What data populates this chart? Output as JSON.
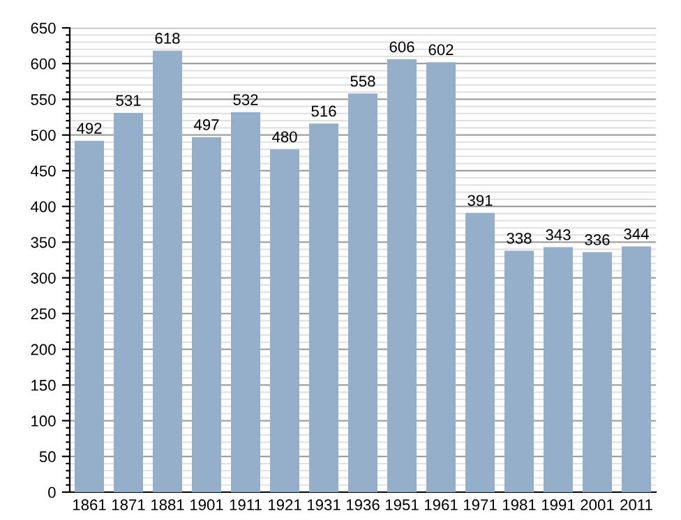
{
  "chart_data": {
    "type": "bar",
    "categories": [
      "1861",
      "1871",
      "1881",
      "1901",
      "1911",
      "1921",
      "1931",
      "1936",
      "1951",
      "1961",
      "1971",
      "1981",
      "1991",
      "2001",
      "2011"
    ],
    "values": [
      492,
      531,
      618,
      497,
      532,
      480,
      516,
      558,
      606,
      602,
      391,
      338,
      343,
      336,
      344
    ],
    "color": "#95afcb",
    "data_labels": true,
    "ylim": [
      0,
      650
    ],
    "yticks": [
      0,
      {
        "value": 10,
        "label": null
      },
      {
        "value": 20,
        "label": null
      },
      {
        "value": 30,
        "label": null
      },
      {
        "value": 40,
        "label": null
      },
      50,
      {
        "value": 60,
        "label": null
      },
      {
        "value": 70,
        "label": null
      },
      {
        "value": 80,
        "label": null
      },
      {
        "value": 90,
        "label": null
      },
      100,
      {
        "value": 110,
        "label": null
      },
      {
        "value": 120,
        "label": null
      },
      {
        "value": 130,
        "label": null
      },
      {
        "value": 140,
        "label": null
      },
      150,
      {
        "value": 160,
        "label": null
      },
      {
        "value": 170,
        "label": null
      },
      {
        "value": 180,
        "label": null
      },
      {
        "value": 190,
        "label": null
      },
      200,
      {
        "value": 210,
        "label": null
      },
      {
        "value": 220,
        "label": null
      },
      {
        "value": 230,
        "label": null
      },
      {
        "value": 240,
        "label": null
      },
      250,
      {
        "value": 260,
        "label": null
      },
      {
        "value": 270,
        "label": null
      },
      {
        "value": 280,
        "label": null
      },
      {
        "value": 290,
        "label": null
      },
      300,
      {
        "value": 310,
        "label": null
      },
      {
        "value": 320,
        "label": null
      },
      {
        "value": 330,
        "label": null
      },
      {
        "value": 340,
        "label": null
      },
      350,
      {
        "value": 360,
        "label": null
      },
      {
        "value": 370,
        "label": null
      },
      {
        "value": 380,
        "label": null
      },
      {
        "value": 390,
        "label": null
      },
      400,
      {
        "value": 410,
        "label": null
      },
      {
        "value": 420,
        "label": null
      },
      {
        "value": 430,
        "label": null
      },
      {
        "value": 440,
        "label": null
      },
      450,
      {
        "value": 460,
        "label": null
      },
      {
        "value": 470,
        "label": null
      },
      {
        "value": 480,
        "label": null
      },
      {
        "value": 490,
        "label": null
      },
      500,
      {
        "value": 510,
        "label": null
      },
      {
        "value": 520,
        "label": null
      },
      {
        "value": 530,
        "label": null
      },
      {
        "value": 540,
        "label": null
      },
      550,
      {
        "value": 560,
        "label": null
      },
      {
        "value": 570,
        "label": null
      },
      {
        "value": 580,
        "label": null
      },
      {
        "value": 590,
        "label": null
      },
      600,
      {
        "value": 610,
        "label": null
      },
      {
        "value": 620,
        "label": null
      },
      {
        "value": 630,
        "label": null
      },
      {
        "value": 640,
        "label": null
      },
      650
    ],
    "grid": "y"
  }
}
